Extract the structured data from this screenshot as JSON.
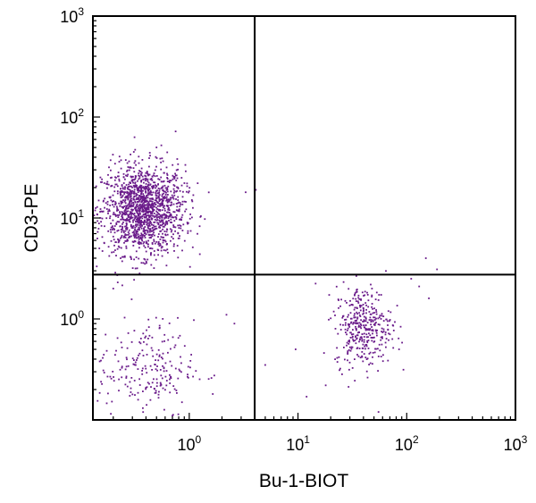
{
  "chart_data": {
    "type": "scatter",
    "xlabel": "Bu-1-BIOT",
    "ylabel": "CD3-PE",
    "x_scale": "log",
    "y_scale": "log",
    "xlim": [
      0.13,
      1000
    ],
    "ylim": [
      0.1,
      1000
    ],
    "x_ticks": [
      {
        "value": 1,
        "base": "10",
        "exp": "0"
      },
      {
        "value": 10,
        "base": "10",
        "exp": "1"
      },
      {
        "value": 100,
        "base": "10",
        "exp": "2"
      },
      {
        "value": 1000,
        "base": "10",
        "exp": "3"
      }
    ],
    "y_ticks": [
      {
        "value": 1,
        "base": "10",
        "exp": "0"
      },
      {
        "value": 10,
        "base": "10",
        "exp": "1"
      },
      {
        "value": 100,
        "base": "10",
        "exp": "2"
      },
      {
        "value": 1000,
        "base": "10",
        "exp": "3"
      }
    ],
    "gates": {
      "x": 4.0,
      "y": 2.75
    },
    "grid": false,
    "point_color": "#6a1b8a",
    "populations": [
      {
        "cx": 0.38,
        "cy": 12.0,
        "sx": 0.19,
        "sy": 0.22,
        "n": 1500
      },
      {
        "cx": 0.4,
        "cy": 0.32,
        "sx": 0.22,
        "sy": 0.24,
        "n": 220
      },
      {
        "cx": 40.0,
        "cy": 0.85,
        "sx": 0.13,
        "sy": 0.2,
        "n": 380
      }
    ],
    "sparse_points": [
      [
        3.3,
        18
      ],
      [
        4.1,
        19
      ],
      [
        0.27,
        35
      ],
      [
        0.75,
        72
      ],
      [
        0.5,
        50
      ],
      [
        150,
        4.0
      ],
      [
        190,
        3.1
      ],
      [
        110,
        2.5
      ],
      [
        5.0,
        0.35
      ],
      [
        9.5,
        0.5
      ],
      [
        12,
        0.17
      ],
      [
        18,
        0.22
      ],
      [
        0.35,
        0.1
      ],
      [
        0.7,
        0.11
      ],
      [
        2.2,
        1.1
      ],
      [
        2.6,
        0.9
      ],
      [
        1.6,
        0.26
      ],
      [
        0.15,
        0.38
      ],
      [
        0.17,
        0.7
      ],
      [
        0.2,
        2.0
      ],
      [
        0.22,
        2.3
      ],
      [
        55,
        0.12
      ],
      [
        85,
        0.5
      ],
      [
        130,
        2.1
      ],
      [
        160,
        1.6
      ]
    ]
  }
}
